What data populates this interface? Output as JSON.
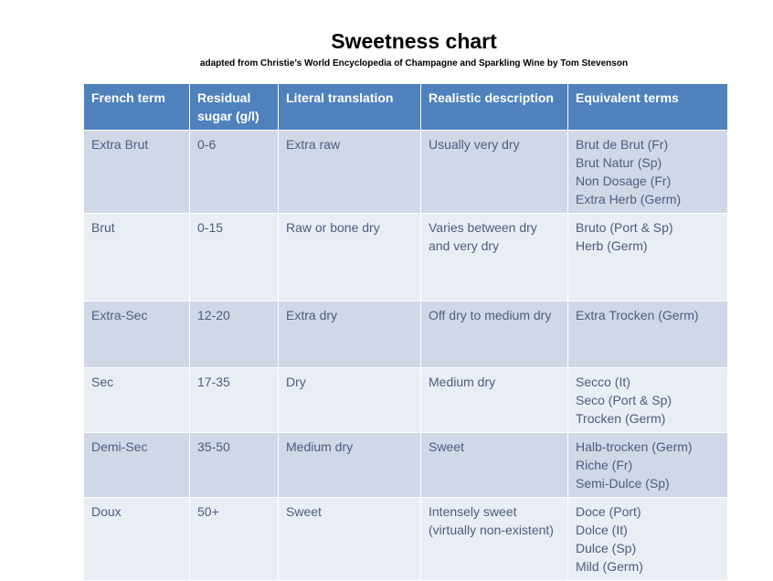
{
  "header": {
    "title": "Sweetness chart",
    "subtitle": "adapted from Christie’s World Encyclopedia of Champagne and Sparkling Wine by Tom Stevenson"
  },
  "table": {
    "columns": [
      "French term",
      "Residual sugar (g/l)",
      "Literal translation",
      "Realistic description",
      "Equivalent terms"
    ],
    "rows": [
      [
        "Extra Brut",
        "0-6",
        "Extra raw",
        "Usually very dry",
        [
          "Brut de Brut (Fr)",
          "Brut Natur (Sp)",
          "Non Dosage (Fr)",
          "Extra Herb (Germ)"
        ]
      ],
      [
        "Brut",
        "0-15",
        "Raw or bone dry",
        "Varies between dry and very dry",
        [
          "Bruto (Port & Sp)",
          "Herb (Germ)"
        ]
      ],
      [
        "Extra-Sec",
        "12-20",
        "Extra dry",
        "Off dry to medium dry",
        [
          "Extra Trocken (Germ)"
        ]
      ],
      [
        "Sec",
        "17-35",
        "Dry",
        "Medium dry",
        [
          "Secco (It)",
          "Seco (Port & Sp)",
          "Trocken (Germ)"
        ]
      ],
      [
        "Demi-Sec",
        "35-50",
        "Medium dry",
        "Sweet",
        [
          "Halb-trocken (Germ)",
          "Riche (Fr)",
          "Semi-Dulce (Sp)"
        ]
      ],
      [
        "Doux",
        "50+",
        "Sweet",
        "Intensely sweet (virtually non-existent)",
        [
          "Doce (Port)",
          "Dolce (It)",
          "Dulce (Sp)",
          "Mild (Germ)"
        ]
      ]
    ]
  }
}
